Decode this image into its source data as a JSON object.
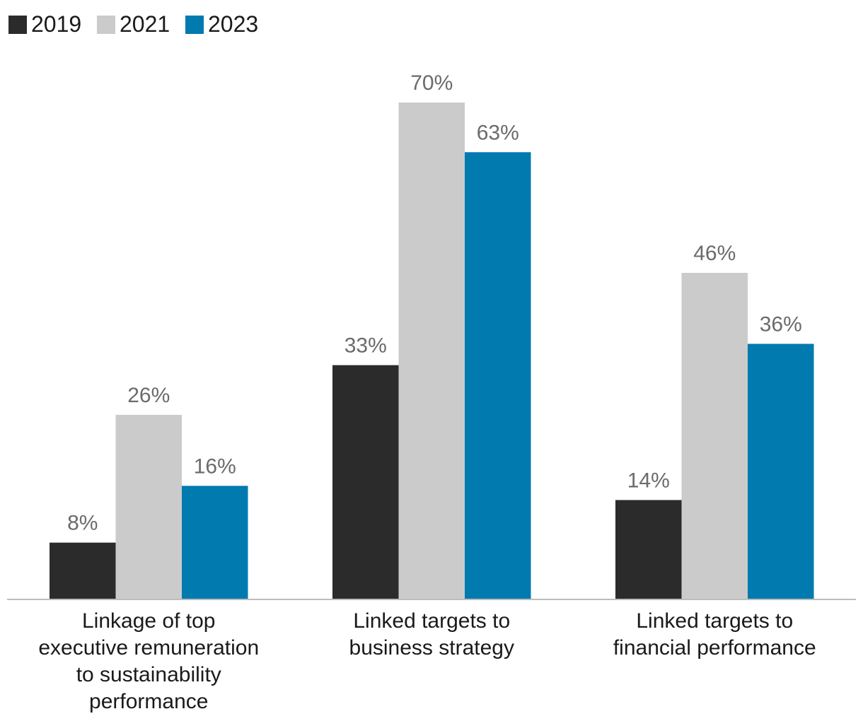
{
  "chart_data": {
    "type": "bar",
    "title": "",
    "xlabel": "",
    "ylabel": "",
    "ylim": [
      0,
      70
    ],
    "grid": false,
    "legend_position": "top-left",
    "categories": [
      [
        "Linkage of top",
        "executive remuneration",
        "to sustainability",
        "performance"
      ],
      [
        "Linked targets to",
        "business strategy"
      ],
      [
        "Linked targets to",
        "financial performance"
      ]
    ],
    "series": [
      {
        "name": "2019",
        "color": "#2b2b2b",
        "values": [
          8,
          33,
          14
        ],
        "labels": [
          "8%",
          "33%",
          "14%"
        ]
      },
      {
        "name": "2021",
        "color": "#cbcbcb",
        "values": [
          26,
          70,
          46
        ],
        "labels": [
          "26%",
          "70%",
          "46%"
        ]
      },
      {
        "name": "2023",
        "color": "#007aaf",
        "values": [
          16,
          63,
          36
        ],
        "labels": [
          "16%",
          "63%",
          "36%"
        ]
      }
    ]
  }
}
